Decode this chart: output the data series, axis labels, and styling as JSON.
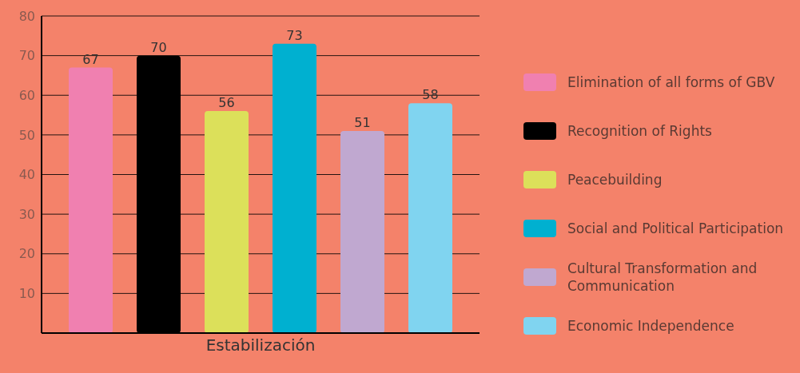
{
  "chart_data": {
    "type": "bar",
    "categories": [
      "Estabilización"
    ],
    "series": [
      {
        "name": "Elimination of all forms of GBV",
        "color": "#f080b0",
        "values": [
          67
        ]
      },
      {
        "name": "Recognition of Rights",
        "color": "#000000",
        "values": [
          70
        ]
      },
      {
        "name": "Peacebuilding",
        "color": "#dce05a",
        "values": [
          56
        ]
      },
      {
        "name": "Social and Political Participation",
        "color": "#00b0d0",
        "values": [
          73
        ]
      },
      {
        "name": "Cultural Transformation and Communication",
        "color": "#c0a8d0",
        "values": [
          51
        ]
      },
      {
        "name": "Economic Independence",
        "color": "#80d4f0",
        "values": [
          58
        ]
      }
    ],
    "ylim": [
      0,
      80
    ],
    "yticks": [
      10,
      20,
      30,
      40,
      50,
      60,
      70,
      80
    ],
    "grid": "y",
    "legend": "right",
    "data_labels": true
  }
}
